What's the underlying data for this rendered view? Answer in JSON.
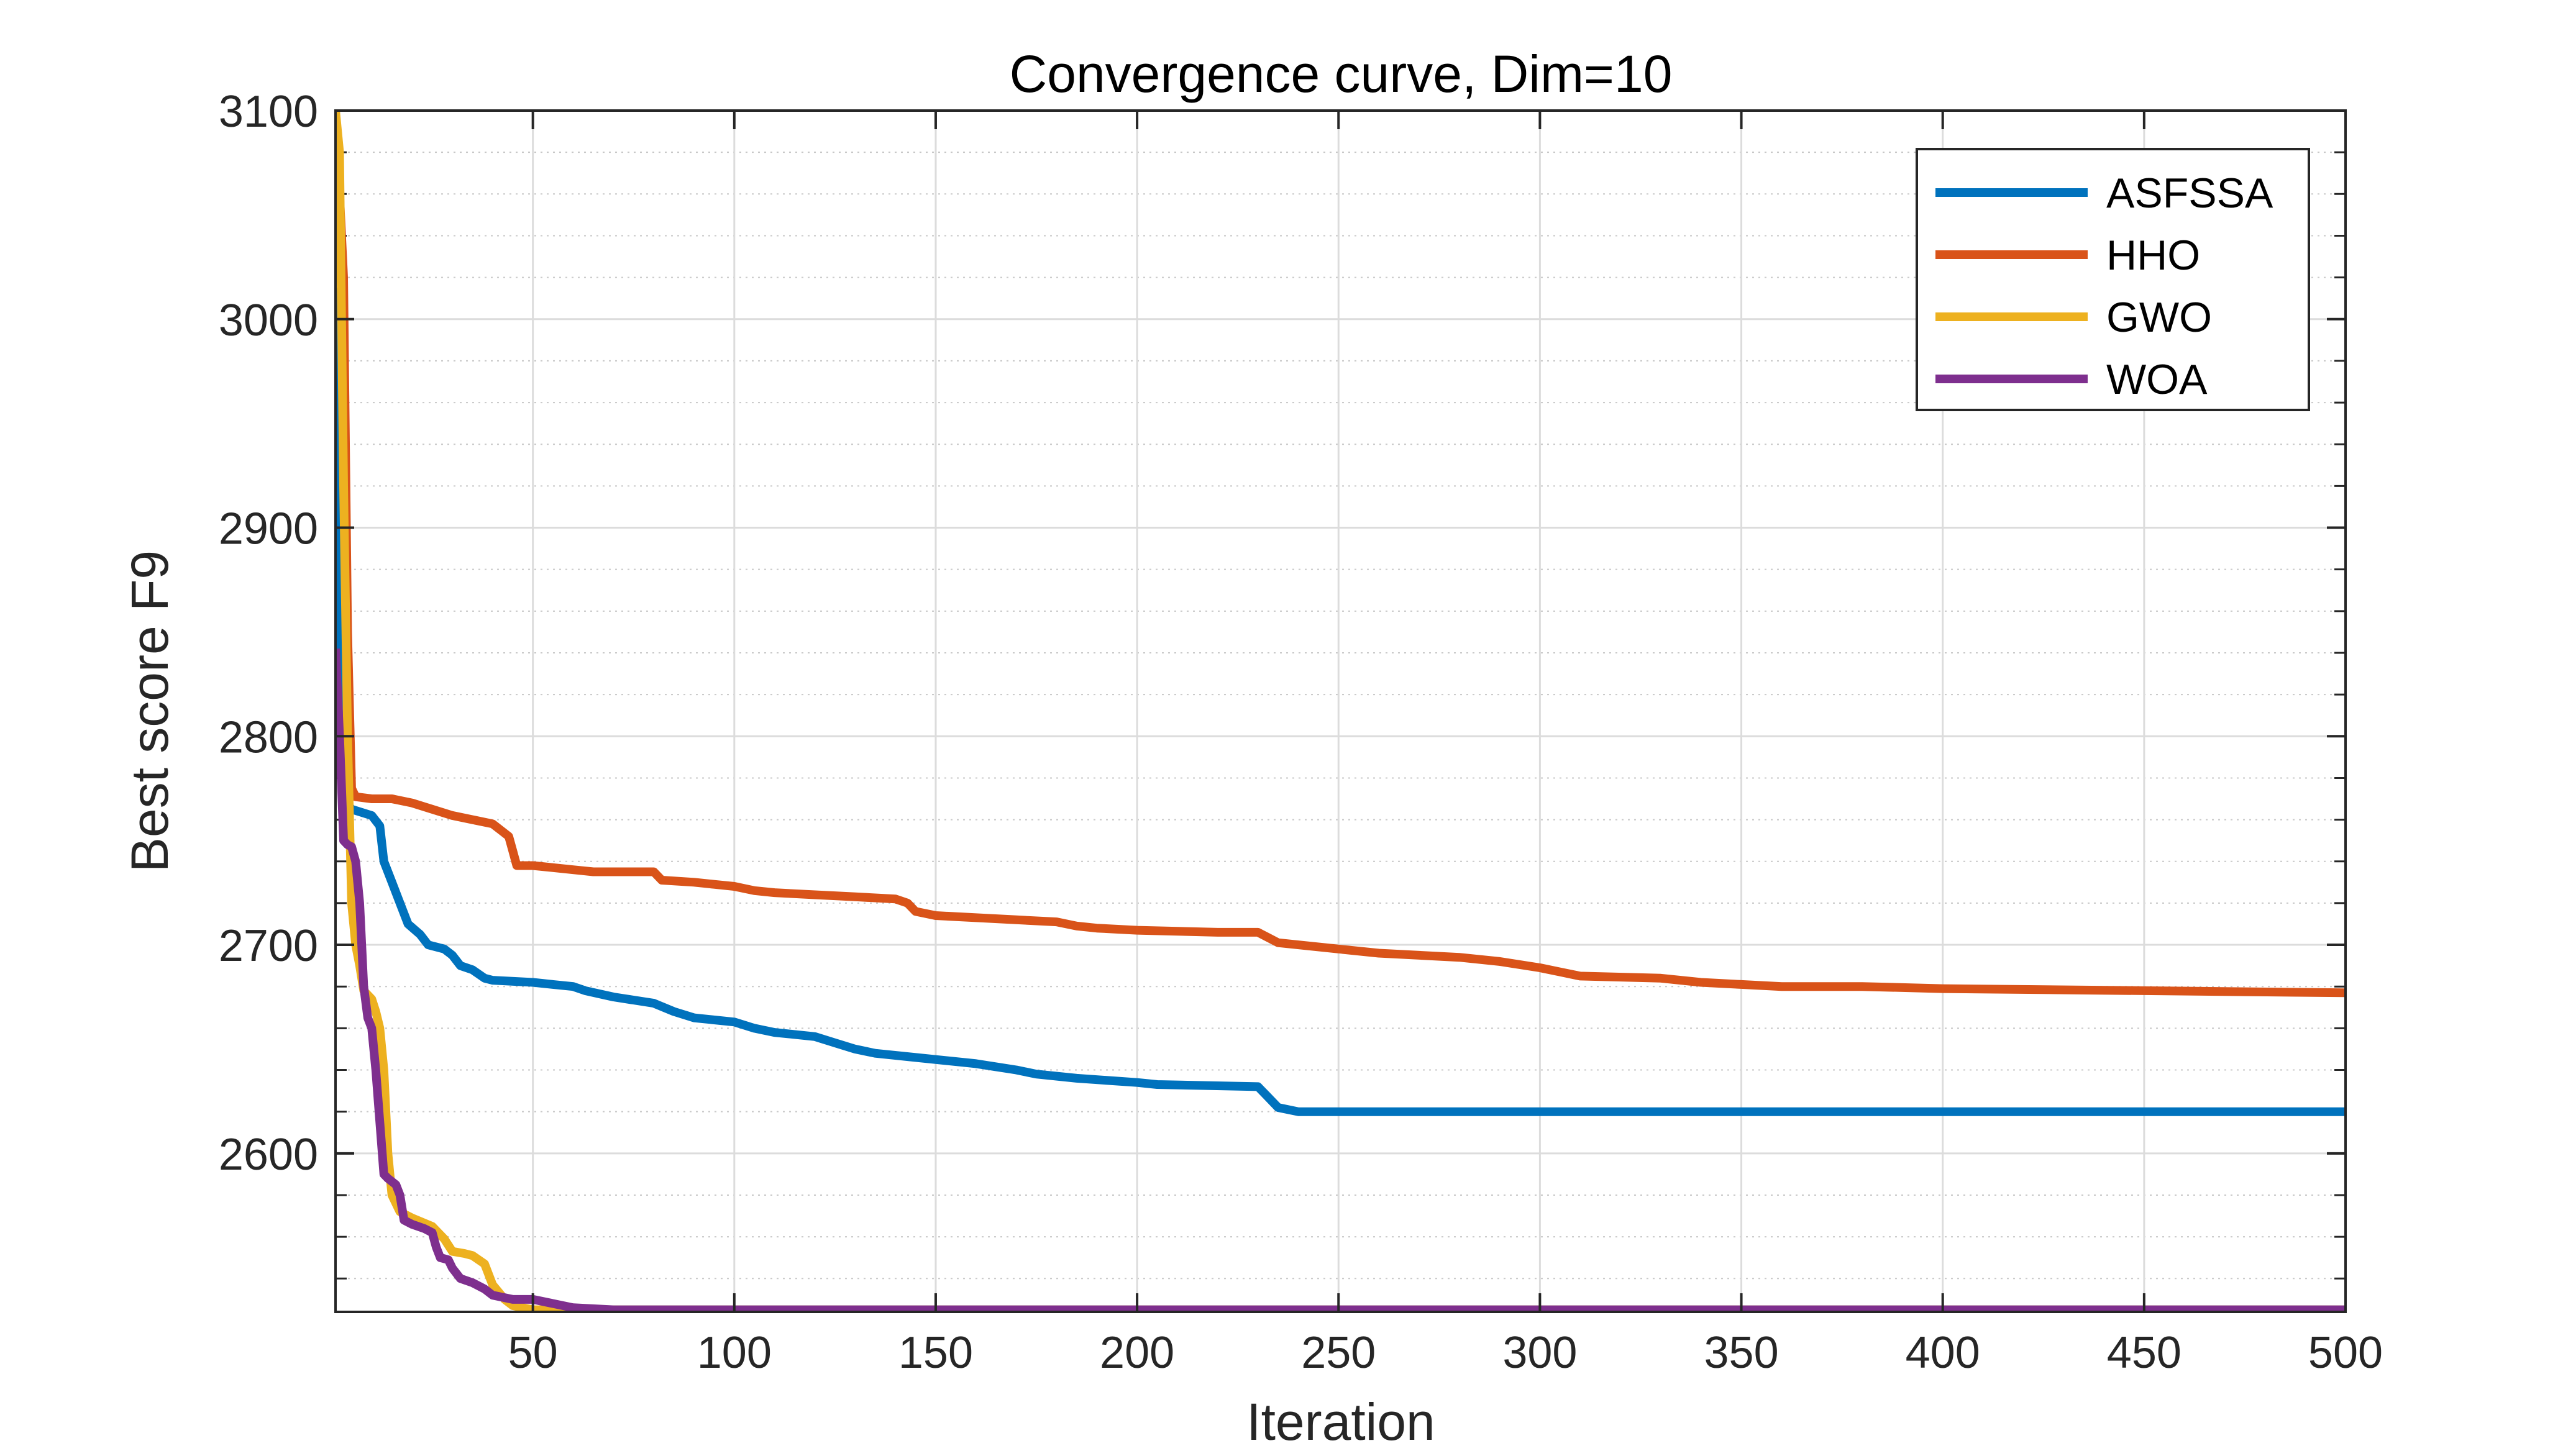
{
  "chart_data": {
    "type": "line",
    "title": "Convergence curve, Dim=10",
    "xlabel": "Iteration",
    "ylabel": "Best score F9",
    "xlim": [
      1,
      500
    ],
    "ylim": [
      2524,
      3100
    ],
    "xticks": [
      50,
      100,
      150,
      200,
      250,
      300,
      350,
      400,
      450,
      500
    ],
    "yticks": [
      2600,
      2700,
      2800,
      2900,
      3000,
      3100
    ],
    "yminor_step": 20,
    "grid": "on",
    "legend_position": "top-right",
    "series": [
      {
        "name": "ASFSSA",
        "color": "#0072BD",
        "points": [
          [
            1,
            3015
          ],
          [
            2,
            2790
          ],
          [
            3,
            2770
          ],
          [
            5,
            2765
          ],
          [
            10,
            2762
          ],
          [
            12,
            2757
          ],
          [
            13,
            2740
          ],
          [
            15,
            2730
          ],
          [
            17,
            2720
          ],
          [
            19,
            2710
          ],
          [
            22,
            2705
          ],
          [
            24,
            2700
          ],
          [
            28,
            2698
          ],
          [
            30,
            2695
          ],
          [
            32,
            2690
          ],
          [
            35,
            2688
          ],
          [
            38,
            2684
          ],
          [
            40,
            2683
          ],
          [
            50,
            2682
          ],
          [
            55,
            2681
          ],
          [
            60,
            2680
          ],
          [
            63,
            2678
          ],
          [
            70,
            2675
          ],
          [
            80,
            2672
          ],
          [
            85,
            2668
          ],
          [
            90,
            2665
          ],
          [
            100,
            2663
          ],
          [
            105,
            2660
          ],
          [
            110,
            2658
          ],
          [
            120,
            2656
          ],
          [
            125,
            2653
          ],
          [
            130,
            2650
          ],
          [
            135,
            2648
          ],
          [
            145,
            2646
          ],
          [
            160,
            2643
          ],
          [
            170,
            2640
          ],
          [
            175,
            2638
          ],
          [
            185,
            2636
          ],
          [
            200,
            2634
          ],
          [
            205,
            2633
          ],
          [
            230,
            2632
          ],
          [
            232,
            2628
          ],
          [
            235,
            2622
          ],
          [
            240,
            2620
          ],
          [
            300,
            2620
          ],
          [
            400,
            2620
          ],
          [
            500,
            2620
          ]
        ]
      },
      {
        "name": "HHO",
        "color": "#D95319",
        "points": [
          [
            1,
            3100
          ],
          [
            2,
            3060
          ],
          [
            3,
            3020
          ],
          [
            4,
            2850
          ],
          [
            5,
            2775
          ],
          [
            6,
            2771
          ],
          [
            10,
            2770
          ],
          [
            15,
            2770
          ],
          [
            20,
            2768
          ],
          [
            25,
            2765
          ],
          [
            30,
            2762
          ],
          [
            35,
            2760
          ],
          [
            40,
            2758
          ],
          [
            42,
            2755
          ],
          [
            44,
            2752
          ],
          [
            45,
            2745
          ],
          [
            46,
            2738
          ],
          [
            50,
            2738
          ],
          [
            55,
            2737
          ],
          [
            60,
            2736
          ],
          [
            65,
            2735
          ],
          [
            80,
            2735
          ],
          [
            82,
            2731
          ],
          [
            90,
            2730
          ],
          [
            95,
            2729
          ],
          [
            100,
            2728
          ],
          [
            105,
            2726
          ],
          [
            110,
            2725
          ],
          [
            120,
            2724
          ],
          [
            130,
            2723
          ],
          [
            140,
            2722
          ],
          [
            143,
            2720
          ],
          [
            145,
            2716
          ],
          [
            150,
            2714
          ],
          [
            160,
            2713
          ],
          [
            170,
            2712
          ],
          [
            180,
            2711
          ],
          [
            185,
            2709
          ],
          [
            190,
            2708
          ],
          [
            200,
            2707
          ],
          [
            220,
            2706
          ],
          [
            230,
            2706
          ],
          [
            232,
            2704
          ],
          [
            235,
            2701
          ],
          [
            240,
            2700
          ],
          [
            250,
            2698
          ],
          [
            260,
            2696
          ],
          [
            280,
            2694
          ],
          [
            290,
            2692
          ],
          [
            300,
            2689
          ],
          [
            305,
            2687
          ],
          [
            310,
            2685
          ],
          [
            330,
            2684
          ],
          [
            340,
            2682
          ],
          [
            350,
            2681
          ],
          [
            360,
            2680
          ],
          [
            380,
            2680
          ],
          [
            400,
            2679
          ],
          [
            450,
            2678
          ],
          [
            500,
            2677
          ]
        ]
      },
      {
        "name": "GWO",
        "color": "#EDB120",
        "points": [
          [
            1,
            3100
          ],
          [
            2,
            3080
          ],
          [
            3,
            2920
          ],
          [
            4,
            2800
          ],
          [
            5,
            2720
          ],
          [
            6,
            2700
          ],
          [
            7,
            2690
          ],
          [
            8,
            2678
          ],
          [
            10,
            2674
          ],
          [
            11,
            2668
          ],
          [
            12,
            2660
          ],
          [
            13,
            2640
          ],
          [
            14,
            2600
          ],
          [
            15,
            2580
          ],
          [
            17,
            2572
          ],
          [
            20,
            2569
          ],
          [
            25,
            2565
          ],
          [
            28,
            2559
          ],
          [
            30,
            2553
          ],
          [
            33,
            2552
          ],
          [
            35,
            2551
          ],
          [
            38,
            2547
          ],
          [
            40,
            2537
          ],
          [
            43,
            2530
          ],
          [
            45,
            2527
          ],
          [
            50,
            2525
          ],
          [
            55,
            2525
          ],
          [
            60,
            2525
          ],
          [
            100,
            2525
          ],
          [
            200,
            2525
          ],
          [
            300,
            2525
          ],
          [
            400,
            2525
          ],
          [
            500,
            2525
          ]
        ]
      },
      {
        "name": "WOA",
        "color": "#7E2F8E",
        "points": [
          [
            1,
            2842
          ],
          [
            2,
            2800
          ],
          [
            3,
            2750
          ],
          [
            4,
            2748
          ],
          [
            5,
            2747
          ],
          [
            6,
            2740
          ],
          [
            7,
            2720
          ],
          [
            8,
            2680
          ],
          [
            9,
            2665
          ],
          [
            10,
            2660
          ],
          [
            11,
            2640
          ],
          [
            12,
            2615
          ],
          [
            13,
            2590
          ],
          [
            14,
            2588
          ],
          [
            16,
            2585
          ],
          [
            17,
            2580
          ],
          [
            18,
            2568
          ],
          [
            20,
            2566
          ],
          [
            23,
            2564
          ],
          [
            25,
            2562
          ],
          [
            26,
            2555
          ],
          [
            27,
            2550
          ],
          [
            29,
            2549
          ],
          [
            30,
            2545
          ],
          [
            32,
            2540
          ],
          [
            35,
            2538
          ],
          [
            38,
            2535
          ],
          [
            40,
            2532
          ],
          [
            45,
            2530
          ],
          [
            50,
            2530
          ],
          [
            55,
            2528
          ],
          [
            60,
            2526
          ],
          [
            70,
            2525
          ],
          [
            100,
            2525
          ],
          [
            200,
            2525
          ],
          [
            300,
            2525
          ],
          [
            400,
            2525
          ],
          [
            500,
            2525
          ]
        ]
      }
    ]
  }
}
